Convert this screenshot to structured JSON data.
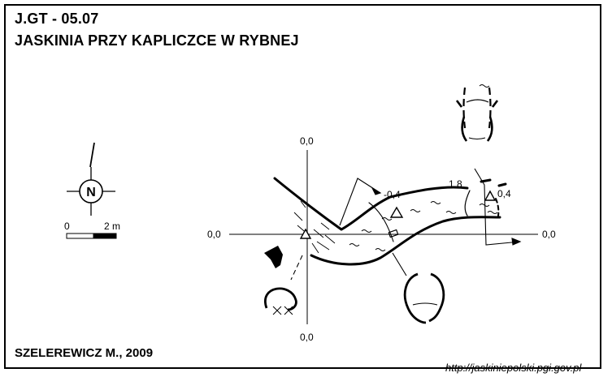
{
  "header": {
    "code": "J.GT - 05.07",
    "title": "JASKINIA PRZY KAPLICZCE W RYBNEJ"
  },
  "compass": {
    "letter": "N",
    "icon": "north-arrow-icon"
  },
  "scale_bar": {
    "min_label": "0",
    "max_label": "2 m"
  },
  "axes": {
    "top": "0,0",
    "bottom": "0,0",
    "left": "0,0",
    "right": "0,0"
  },
  "depths": {
    "entrance_inner": "-0,4",
    "ceiling_height": "1,8",
    "chamber_end": "0,4"
  },
  "footer": {
    "author": "SZELEREWICZ M., 2009",
    "url": "http://jaskiniepolski.pgi.gov.pl"
  },
  "colors": {
    "ink": "#000000",
    "background": "#ffffff"
  }
}
